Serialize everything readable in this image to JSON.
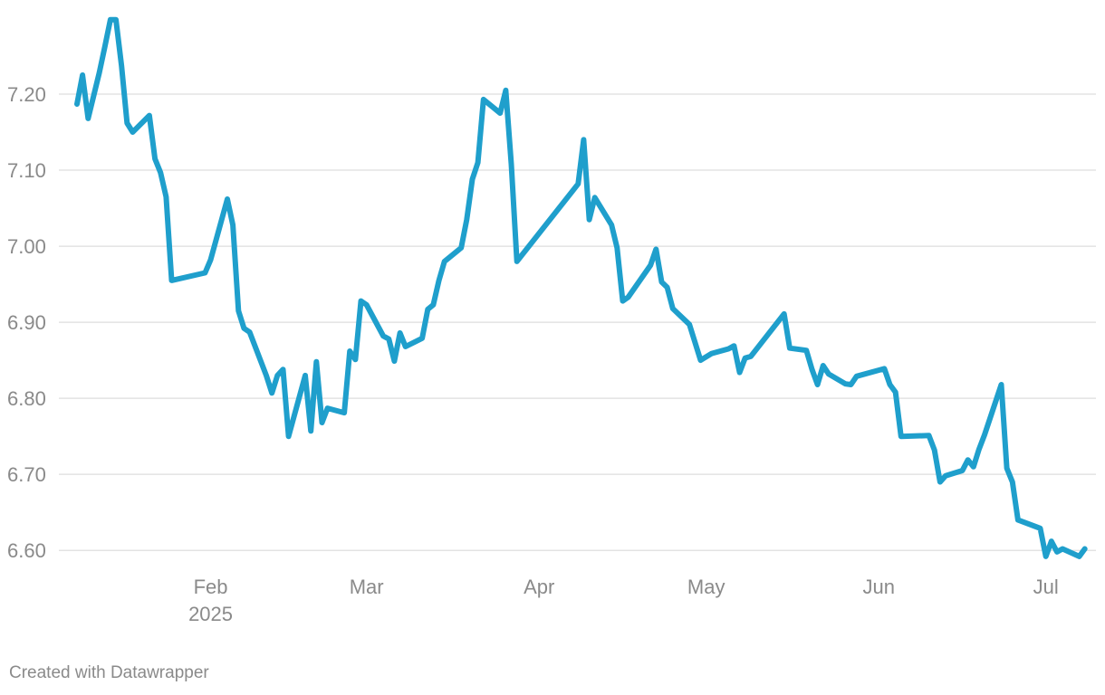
{
  "chart_data": {
    "type": "line",
    "title": "",
    "xlabel": "",
    "ylabel": "",
    "ylim": [
      6.58,
      7.3
    ],
    "xlim": [
      "2025-01-08",
      "2025-07-10"
    ],
    "grid": true,
    "line_color": "#1f9fcc",
    "y_ticks": [
      {
        "value": 7.2,
        "label": "7.20"
      },
      {
        "value": 7.1,
        "label": "7.10"
      },
      {
        "value": 7.0,
        "label": "7.00"
      },
      {
        "value": 6.9,
        "label": "6.90"
      },
      {
        "value": 6.8,
        "label": "6.80"
      },
      {
        "value": 6.7,
        "label": "6.70"
      },
      {
        "value": 6.6,
        "label": "6.60"
      }
    ],
    "x_ticks": [
      {
        "date": "2025-02-01",
        "label": "Feb",
        "sublabel": "2025"
      },
      {
        "date": "2025-03-01",
        "label": "Mar"
      },
      {
        "date": "2025-04-01",
        "label": "Apr"
      },
      {
        "date": "2025-05-01",
        "label": "May"
      },
      {
        "date": "2025-06-01",
        "label": "Jun"
      },
      {
        "date": "2025-07-01",
        "label": "Jul"
      }
    ],
    "series": [
      {
        "points": [
          [
            "2025-01-08",
            7.187
          ],
          [
            "2025-01-09",
            7.225
          ],
          [
            "2025-01-10",
            7.168
          ],
          [
            "2025-01-12",
            7.228
          ],
          [
            "2025-01-13",
            7.262
          ],
          [
            "2025-01-14",
            7.298
          ],
          [
            "2025-01-15",
            7.298
          ],
          [
            "2025-01-16",
            7.237
          ],
          [
            "2025-01-17",
            7.162
          ],
          [
            "2025-01-18",
            7.15
          ],
          [
            "2025-01-21",
            7.172
          ],
          [
            "2025-01-22",
            7.115
          ],
          [
            "2025-01-23",
            7.097
          ],
          [
            "2025-01-24",
            7.065
          ],
          [
            "2025-01-25",
            6.955
          ],
          [
            "2025-01-31",
            6.965
          ],
          [
            "2025-02-01",
            6.982
          ],
          [
            "2025-02-04",
            7.062
          ],
          [
            "2025-02-05",
            7.028
          ],
          [
            "2025-02-06",
            6.915
          ],
          [
            "2025-02-07",
            6.892
          ],
          [
            "2025-02-08",
            6.887
          ],
          [
            "2025-02-11",
            6.83
          ],
          [
            "2025-02-12",
            6.807
          ],
          [
            "2025-02-13",
            6.83
          ],
          [
            "2025-02-14",
            6.838
          ],
          [
            "2025-02-15",
            6.75
          ],
          [
            "2025-02-18",
            6.83
          ],
          [
            "2025-02-19",
            6.757
          ],
          [
            "2025-02-20",
            6.848
          ],
          [
            "2025-02-21",
            6.768
          ],
          [
            "2025-02-22",
            6.787
          ],
          [
            "2025-02-25",
            6.781
          ],
          [
            "2025-02-26",
            6.862
          ],
          [
            "2025-02-27",
            6.851
          ],
          [
            "2025-02-28",
            6.928
          ],
          [
            "2025-03-01",
            6.923
          ],
          [
            "2025-03-04",
            6.882
          ],
          [
            "2025-03-05",
            6.878
          ],
          [
            "2025-03-06",
            6.849
          ],
          [
            "2025-03-07",
            6.886
          ],
          [
            "2025-03-08",
            6.868
          ],
          [
            "2025-03-11",
            6.879
          ],
          [
            "2025-03-12",
            6.917
          ],
          [
            "2025-03-13",
            6.923
          ],
          [
            "2025-03-14",
            6.955
          ],
          [
            "2025-03-15",
            6.98
          ],
          [
            "2025-03-18",
            6.998
          ],
          [
            "2025-03-19",
            7.035
          ],
          [
            "2025-03-20",
            7.088
          ],
          [
            "2025-03-21",
            7.11
          ],
          [
            "2025-03-22",
            7.193
          ],
          [
            "2025-03-25",
            7.175
          ],
          [
            "2025-03-26",
            7.205
          ],
          [
            "2025-03-27",
            7.108
          ],
          [
            "2025-03-28",
            6.98
          ],
          [
            "2025-04-08",
            7.082
          ],
          [
            "2025-04-09",
            7.14
          ],
          [
            "2025-04-10",
            7.035
          ],
          [
            "2025-04-11",
            7.064
          ],
          [
            "2025-04-14",
            7.028
          ],
          [
            "2025-04-15",
            6.998
          ],
          [
            "2025-04-16",
            6.928
          ],
          [
            "2025-04-17",
            6.933
          ],
          [
            "2025-04-21",
            6.975
          ],
          [
            "2025-04-22",
            6.996
          ],
          [
            "2025-04-23",
            6.953
          ],
          [
            "2025-04-24",
            6.946
          ],
          [
            "2025-04-25",
            6.918
          ],
          [
            "2025-04-28",
            6.897
          ],
          [
            "2025-04-30",
            6.85
          ],
          [
            "2025-05-02",
            6.859
          ],
          [
            "2025-05-05",
            6.865
          ],
          [
            "2025-05-06",
            6.869
          ],
          [
            "2025-05-07",
            6.834
          ],
          [
            "2025-05-08",
            6.853
          ],
          [
            "2025-05-09",
            6.855
          ],
          [
            "2025-05-15",
            6.911
          ],
          [
            "2025-05-16",
            6.866
          ],
          [
            "2025-05-19",
            6.863
          ],
          [
            "2025-05-20",
            6.838
          ],
          [
            "2025-05-21",
            6.818
          ],
          [
            "2025-05-22",
            6.843
          ],
          [
            "2025-05-23",
            6.832
          ],
          [
            "2025-05-26",
            6.819
          ],
          [
            "2025-05-27",
            6.818
          ],
          [
            "2025-05-28",
            6.829
          ],
          [
            "2025-06-02",
            6.839
          ],
          [
            "2025-06-03",
            6.818
          ],
          [
            "2025-06-04",
            6.808
          ],
          [
            "2025-06-05",
            6.75
          ],
          [
            "2025-06-10",
            6.751
          ],
          [
            "2025-06-11",
            6.732
          ],
          [
            "2025-06-12",
            6.69
          ],
          [
            "2025-06-13",
            6.698
          ],
          [
            "2025-06-16",
            6.705
          ],
          [
            "2025-06-17",
            6.719
          ],
          [
            "2025-06-18",
            6.71
          ],
          [
            "2025-06-19",
            6.733
          ],
          [
            "2025-06-20",
            6.752
          ],
          [
            "2025-06-23",
            6.818
          ],
          [
            "2025-06-24",
            6.708
          ],
          [
            "2025-06-25",
            6.69
          ],
          [
            "2025-06-26",
            6.64
          ],
          [
            "2025-06-30",
            6.629
          ],
          [
            "2025-07-01",
            6.592
          ],
          [
            "2025-07-02",
            6.612
          ],
          [
            "2025-07-03",
            6.598
          ],
          [
            "2025-07-04",
            6.602
          ],
          [
            "2025-07-07",
            6.592
          ],
          [
            "2025-07-08",
            6.602
          ]
        ]
      }
    ]
  },
  "footer": {
    "credit": "Created with Datawrapper"
  }
}
